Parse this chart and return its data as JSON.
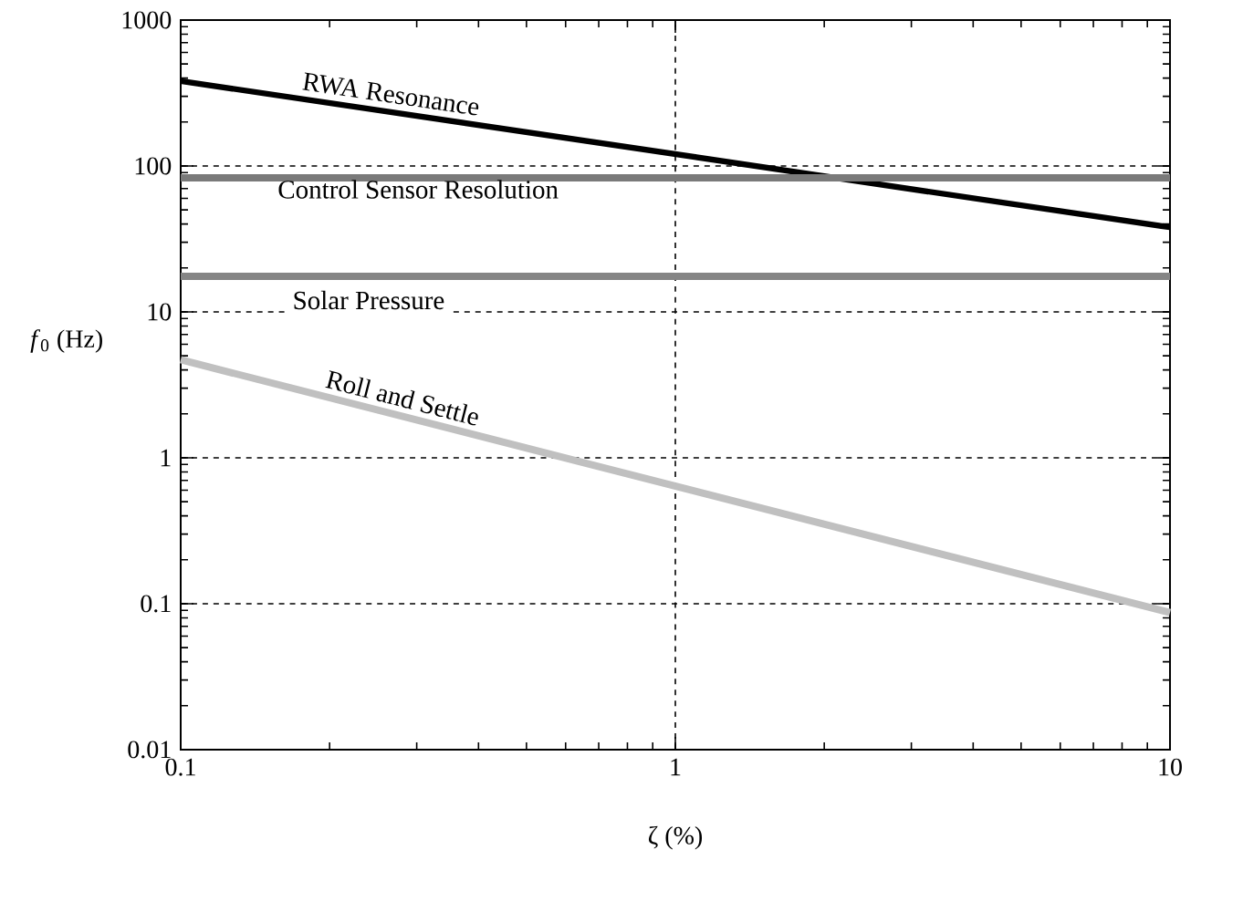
{
  "chart_data": {
    "type": "line",
    "xlabel": "ζ (%)",
    "ylabel": "*f*$_{0}$ (Hz)",
    "log": "xy",
    "xlim": [
      0.1,
      10
    ],
    "ylim": [
      0.01,
      1000
    ],
    "xticks": [
      0.1,
      1,
      10
    ],
    "yticks": [
      0.01,
      0.1,
      1,
      10,
      100,
      1000
    ],
    "grid": true,
    "line_style": "solid",
    "x": [
      0.1,
      10
    ],
    "series": [
      {
        "name": "RWA Resonance",
        "color": "#000000",
        "values": [
          382,
          38
        ]
      },
      {
        "name": "Control Sensor Resolution",
        "color": "#7a7a7a",
        "values": [
          83,
          83
        ]
      },
      {
        "name": "Solar Pressure",
        "color": "#858585",
        "values": [
          17.5,
          17.5
        ]
      },
      {
        "name": "Roll and Settle",
        "color": "#c0c0c0",
        "values": [
          4.7,
          0.087
        ]
      }
    ]
  }
}
